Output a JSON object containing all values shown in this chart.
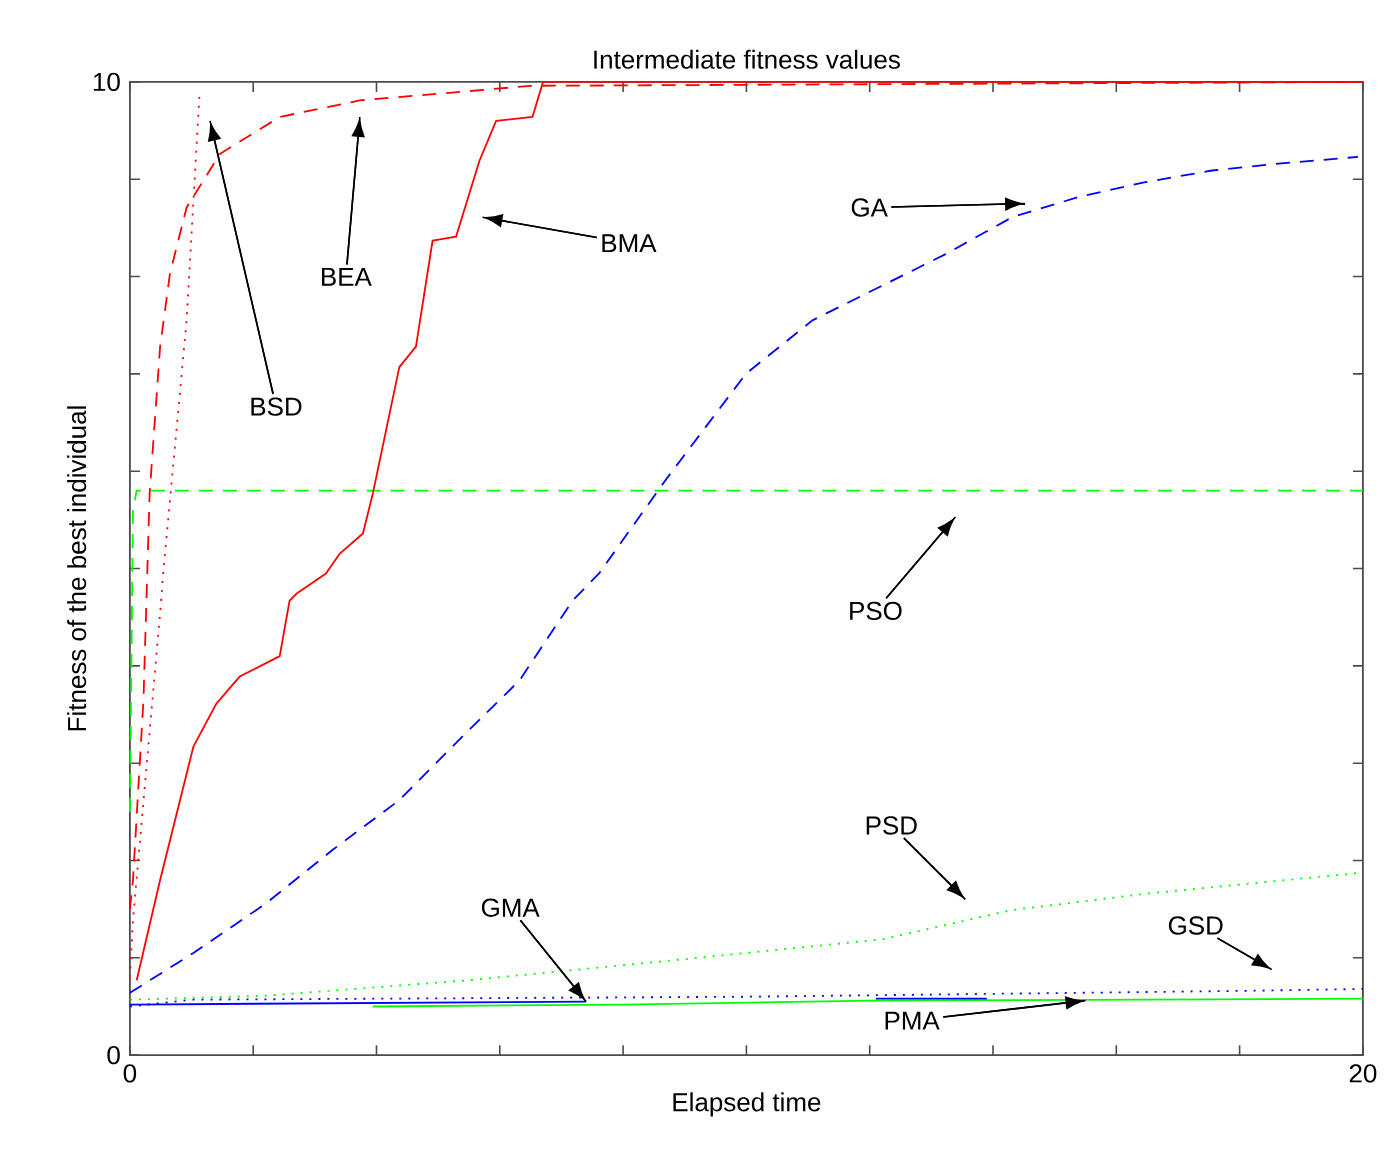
{
  "chart_data": {
    "type": "line",
    "title": "Intermediate fitness values",
    "xlabel": "Elapsed time",
    "ylabel": "Fitness of the best individual",
    "xlim": [
      0,
      20
    ],
    "ylim": [
      0,
      10
    ],
    "xticks": [
      0,
      {
        "value": 2,
        "label": null
      },
      {
        "value": 4,
        "label": null
      },
      {
        "value": 6,
        "label": null
      },
      {
        "value": 8,
        "label": null
      },
      {
        "value": 10,
        "label": null
      },
      {
        "value": 12,
        "label": null
      },
      {
        "value": 14,
        "label": null
      },
      {
        "value": 16,
        "label": null
      },
      {
        "value": 18,
        "label": null
      },
      20
    ],
    "yticks": [
      0,
      {
        "value": 1,
        "label": null
      },
      {
        "value": 2,
        "label": null
      },
      {
        "value": 3,
        "label": null
      },
      {
        "value": 4,
        "label": null
      },
      {
        "value": 5,
        "label": null
      },
      {
        "value": 6,
        "label": null
      },
      {
        "value": 7,
        "label": null
      },
      {
        "value": 8,
        "label": null
      },
      {
        "value": 9,
        "label": null
      },
      10
    ],
    "grid": false,
    "marker": "none",
    "series": [
      {
        "color": "#00ff00",
        "line_style": "solid",
        "x": [
          3.94,
          8,
          12,
          20
        ],
        "values": [
          0.5,
          0.52,
          0.56,
          0.58
        ]
      },
      {
        "color": "#0000ff",
        "line_style": "solid",
        "x": [
          0,
          7.4
        ],
        "values": [
          0.52,
          0.55
        ]
      },
      {
        "color": "#0000ff",
        "line_style": "solid",
        "x": [
          12.1,
          13.9
        ],
        "values": [
          0.58,
          0.58
        ]
      },
      {
        "color": "#0000ff",
        "line_style": "dotted",
        "x": [
          0,
          1,
          10,
          18,
          20
        ],
        "values": [
          0.5,
          0.57,
          0.6,
          0.66,
          0.68
        ]
      },
      {
        "color": "#00ff00",
        "line_style": "dotted",
        "x": [
          0,
          2.2,
          5.5,
          8.9,
          12.2,
          14.3,
          16.5,
          19.9
        ],
        "values": [
          0.57,
          0.61,
          0.77,
          0.98,
          1.19,
          1.49,
          1.66,
          1.87
        ]
      },
      {
        "color": "#00ff00",
        "line_style": "dashed",
        "x": [
          0,
          0.05,
          0.11,
          20
        ],
        "values": [
          2.5,
          5.6,
          5.8,
          5.8
        ]
      },
      {
        "color": "#0000ff",
        "line_style": "dashed",
        "x": [
          0,
          1.03,
          2.21,
          3.29,
          4.37,
          5.45,
          6.32,
          7.18,
          7.61,
          8.69,
          9.99,
          11.07,
          12.15,
          13.23,
          14.31,
          15.4,
          16.47,
          17.55,
          18.63,
          19.92
        ],
        "values": [
          0.64,
          1.05,
          1.56,
          2.11,
          2.62,
          3.31,
          3.85,
          4.67,
          4.95,
          5.91,
          7.0,
          7.55,
          7.89,
          8.23,
          8.61,
          8.82,
          8.97,
          9.09,
          9.16,
          9.23
        ]
      },
      {
        "color": "#ff0000",
        "line_style": "solid",
        "x": [
          0.11,
          0.49,
          1.03,
          1.4,
          1.78,
          2.43,
          2.59,
          2.7,
          3.18,
          3.4,
          3.78,
          3.94,
          4.37,
          4.64,
          4.91,
          5.29,
          5.67,
          5.94,
          6.53,
          6.7,
          20
        ],
        "values": [
          0.77,
          1.8,
          3.17,
          3.61,
          3.89,
          4.1,
          4.67,
          4.74,
          4.95,
          5.15,
          5.36,
          5.77,
          7.07,
          7.28,
          8.37,
          8.41,
          9.19,
          9.6,
          9.64,
          10,
          10
        ]
      },
      {
        "color": "#ff0000",
        "line_style": "dotted",
        "x": [
          0,
          0.05,
          0.49,
          0.54,
          0.92,
          1.13
        ],
        "values": [
          0.8,
          1.39,
          4.54,
          4.95,
          7.55,
          9.88
        ]
      },
      {
        "color": "#ff0000",
        "line_style": "dashed",
        "x": [
          0,
          0.05,
          0.22,
          0.32,
          0.49,
          0.65,
          0.92,
          1.46,
          2.43,
          3.73,
          6.5,
          20
        ],
        "values": [
          1.5,
          1.8,
          3.65,
          5.77,
          7.28,
          8.03,
          8.71,
          9.26,
          9.64,
          9.81,
          9.96,
          10
        ]
      }
    ],
    "annotations": [
      "BSD",
      "BEA",
      "BMA",
      "GA",
      "PSO",
      "PSD",
      "GSD",
      {
        "text": "PMA",
        "x": 15.5,
        "y": 0.56
      },
      {
        "text": "GMA",
        "x": 7.4,
        "y": 0.55
      }
    ]
  }
}
